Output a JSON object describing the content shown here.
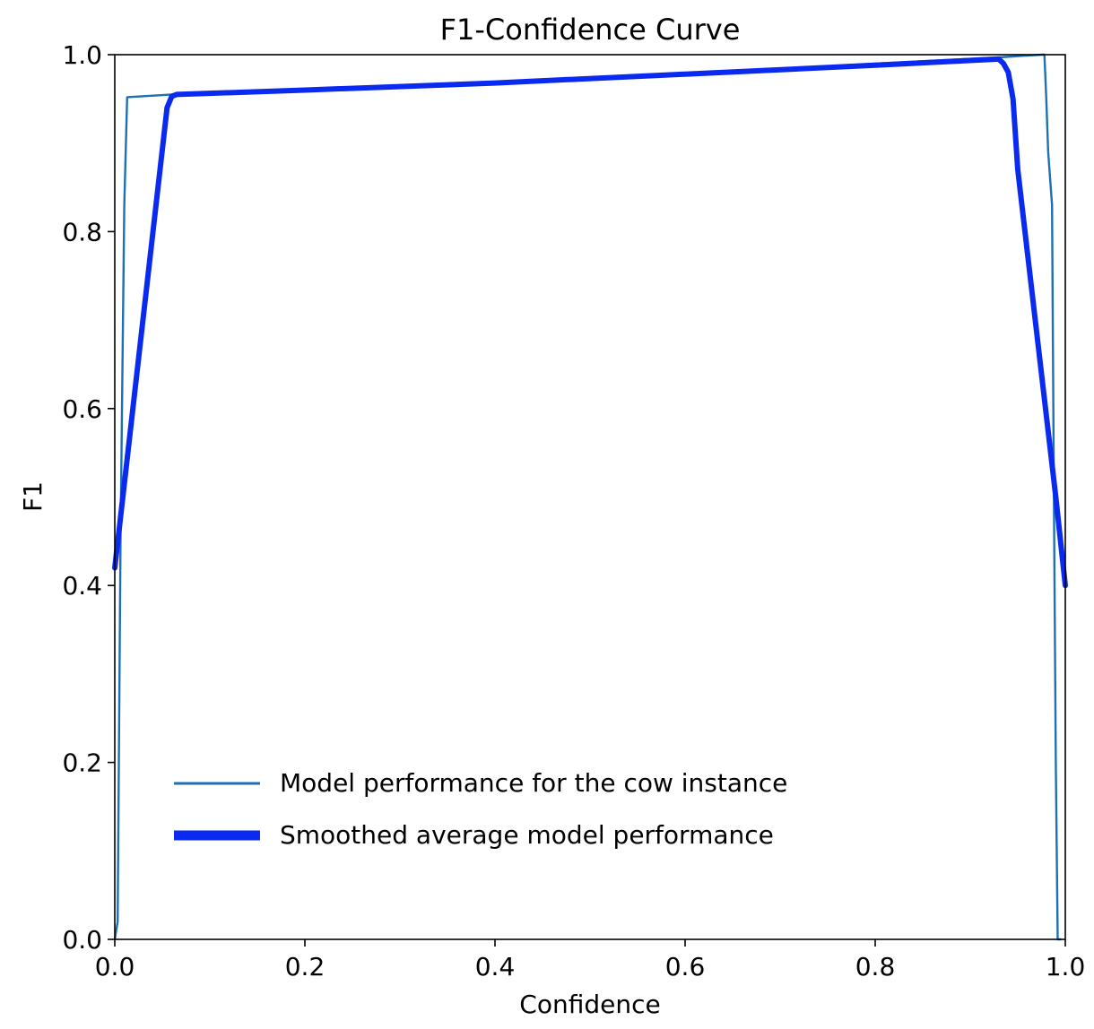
{
  "chart_data": {
    "type": "line",
    "title": "F1-Confidence Curve",
    "xlabel": "Confidence",
    "ylabel": "F1",
    "xlim": [
      0.0,
      1.0
    ],
    "ylim": [
      0.0,
      1.0
    ],
    "xticks": [
      "0.0",
      "0.2",
      "0.4",
      "0.6",
      "0.8",
      "1.0"
    ],
    "yticks": [
      "0.0",
      "0.2",
      "0.4",
      "0.6",
      "0.8",
      "1.0"
    ],
    "grid": false,
    "legend_position": "lower-left",
    "series": [
      {
        "name": "Model performance for the cow instance",
        "color": "#1f6fb4",
        "line_weight": "thin",
        "x": [
          0.0,
          0.003,
          0.006,
          0.01,
          0.013,
          0.06,
          0.2,
          0.4,
          0.6,
          0.8,
          0.93,
          0.975,
          0.978,
          0.98,
          0.982,
          0.986,
          0.988,
          0.99,
          0.992,
          0.995
        ],
        "y": [
          0.0,
          0.02,
          0.45,
          0.83,
          0.952,
          0.955,
          0.96,
          0.967,
          0.978,
          0.99,
          0.997,
          1.0,
          1.0,
          0.95,
          0.89,
          0.83,
          0.5,
          0.2,
          0.0,
          0.0
        ]
      },
      {
        "name": "Smoothed average model performance",
        "color": "#0a2af0",
        "line_weight": "thick",
        "x": [
          0.0,
          0.055,
          0.06,
          0.065,
          0.2,
          0.4,
          0.6,
          0.8,
          0.93,
          0.935,
          0.94,
          0.945,
          0.95,
          0.99,
          1.0
        ],
        "y": [
          0.42,
          0.94,
          0.953,
          0.955,
          0.96,
          0.968,
          0.978,
          0.988,
          0.995,
          0.99,
          0.98,
          0.95,
          0.87,
          0.5,
          0.4
        ]
      }
    ]
  }
}
